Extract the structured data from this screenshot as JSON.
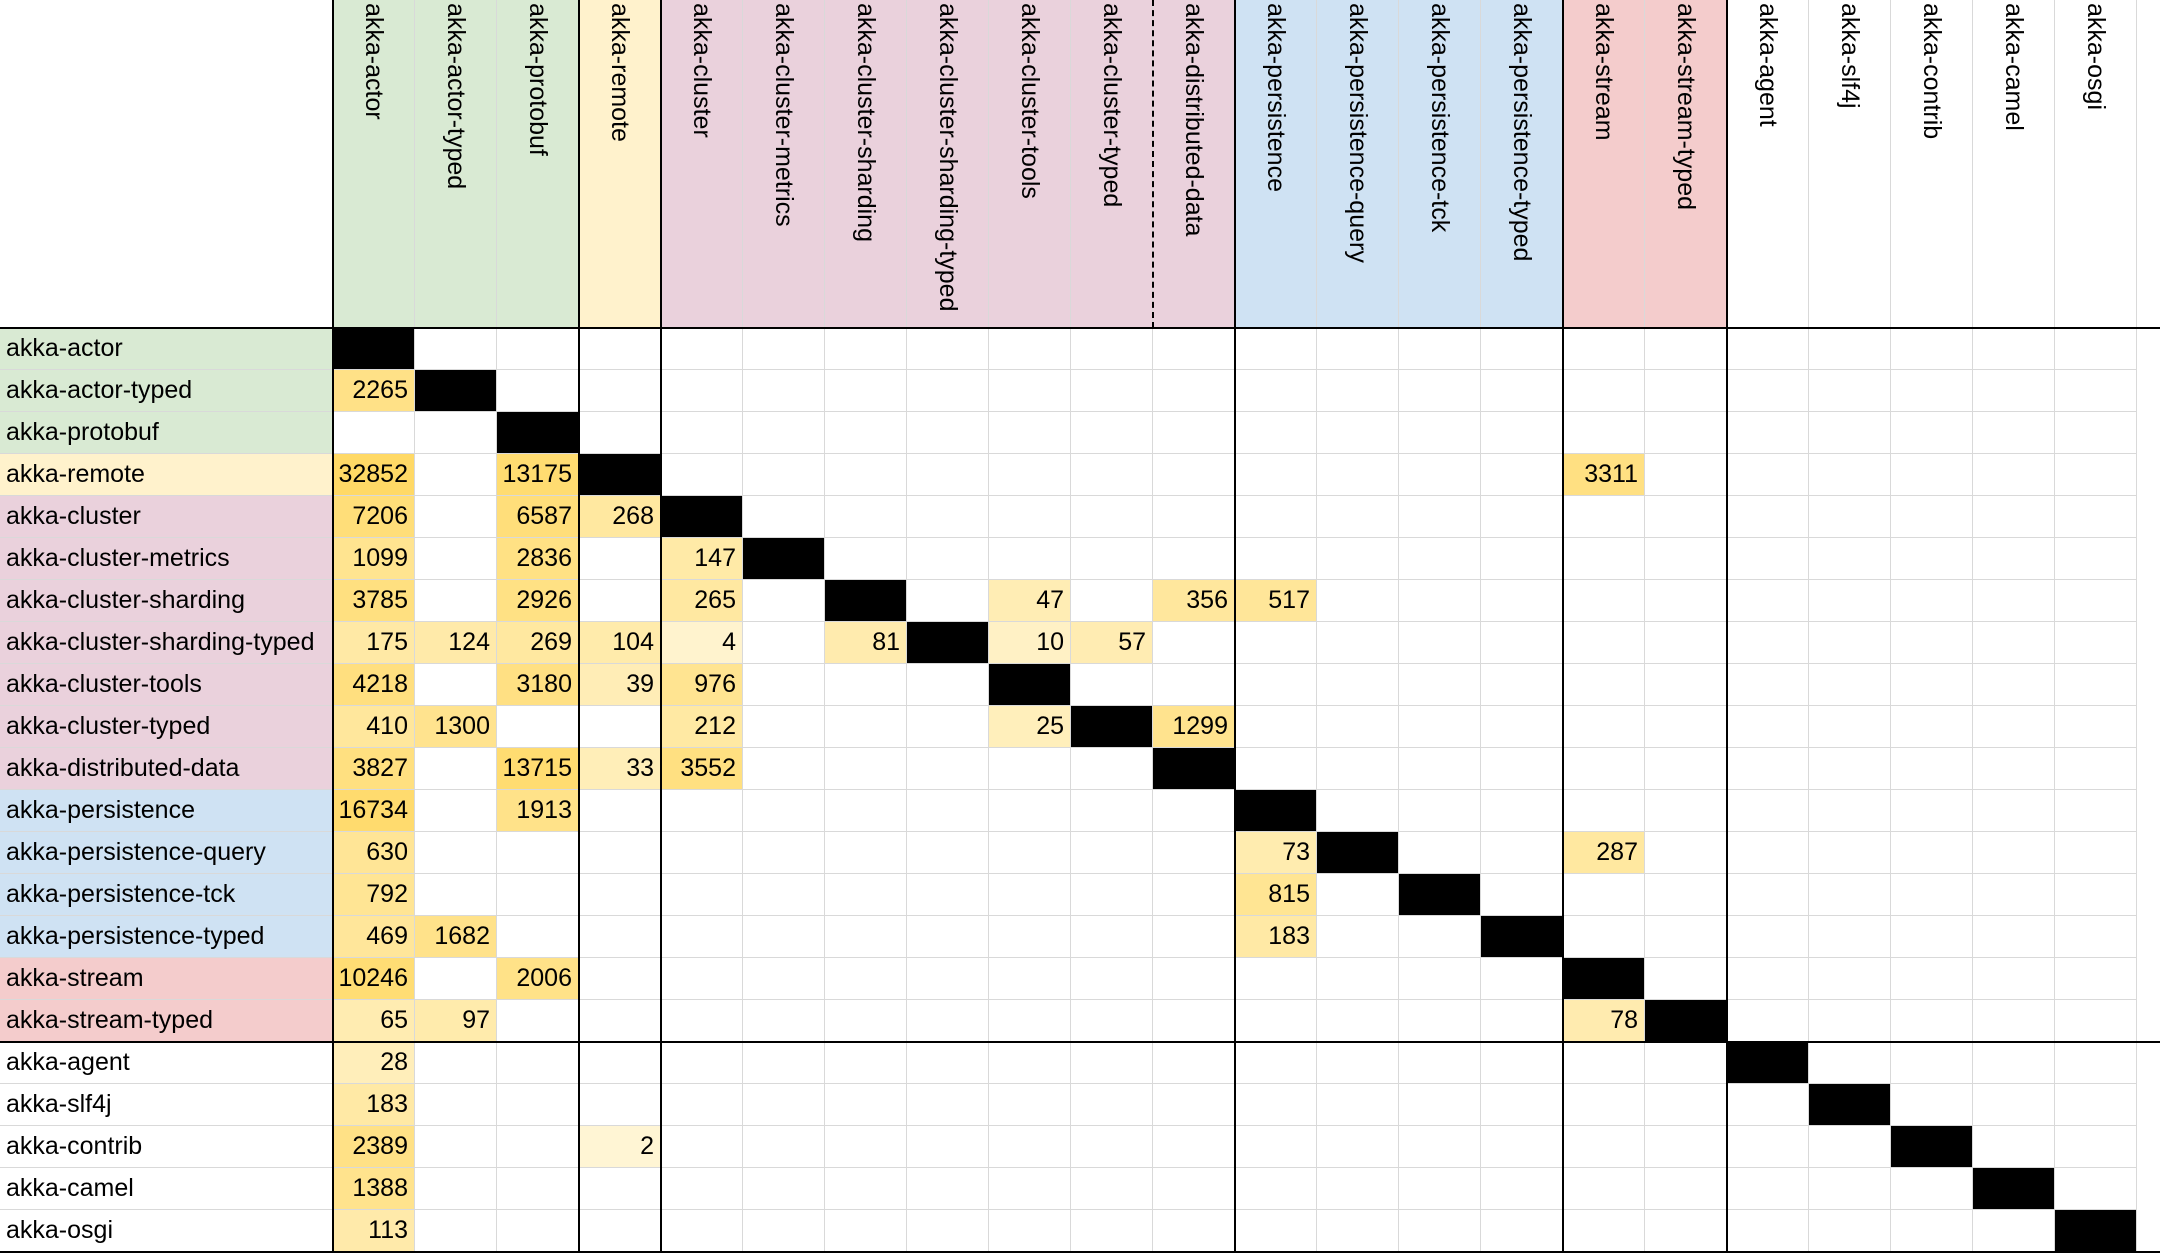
{
  "chart_data": {
    "type": "heatmap",
    "columns": [
      "akka-actor",
      "akka-actor-typed",
      "akka-protobuf",
      "akka-remote",
      "akka-cluster",
      "akka-cluster-metrics",
      "akka-cluster-sharding",
      "akka-cluster-sharding-typed",
      "akka-cluster-tools",
      "akka-cluster-typed",
      "akka-distributed-data",
      "akka-persistence",
      "akka-persistence-query",
      "akka-persistence-tck",
      "akka-persistence-typed",
      "akka-stream",
      "akka-stream-typed",
      "akka-agent",
      "akka-slf4j",
      "akka-contrib",
      "akka-camel",
      "akka-osgi"
    ],
    "rows": [
      "akka-actor",
      "akka-actor-typed",
      "akka-protobuf",
      "akka-remote",
      "akka-cluster",
      "akka-cluster-metrics",
      "akka-cluster-sharding",
      "akka-cluster-sharding-typed",
      "akka-cluster-tools",
      "akka-cluster-typed",
      "akka-distributed-data",
      "akka-persistence",
      "akka-persistence-query",
      "akka-persistence-tck",
      "akka-persistence-typed",
      "akka-stream",
      "akka-stream-typed",
      "akka-agent",
      "akka-slf4j",
      "akka-contrib",
      "akka-camel",
      "akka-osgi"
    ],
    "values": [
      [
        null,
        null,
        null,
        null,
        null,
        null,
        null,
        null,
        null,
        null,
        null,
        null,
        null,
        null,
        null,
        null,
        null,
        null,
        null,
        null,
        null,
        null
      ],
      [
        2265,
        null,
        null,
        null,
        null,
        null,
        null,
        null,
        null,
        null,
        null,
        null,
        null,
        null,
        null,
        null,
        null,
        null,
        null,
        null,
        null,
        null
      ],
      [
        null,
        null,
        null,
        null,
        null,
        null,
        null,
        null,
        null,
        null,
        null,
        null,
        null,
        null,
        null,
        null,
        null,
        null,
        null,
        null,
        null,
        null
      ],
      [
        32852,
        null,
        13175,
        null,
        null,
        null,
        null,
        null,
        null,
        null,
        null,
        null,
        null,
        null,
        null,
        3311,
        null,
        null,
        null,
        null,
        null,
        null
      ],
      [
        7206,
        null,
        6587,
        268,
        null,
        null,
        null,
        null,
        null,
        null,
        null,
        null,
        null,
        null,
        null,
        null,
        null,
        null,
        null,
        null,
        null,
        null
      ],
      [
        1099,
        null,
        2836,
        null,
        147,
        null,
        null,
        null,
        null,
        null,
        null,
        null,
        null,
        null,
        null,
        null,
        null,
        null,
        null,
        null,
        null,
        null
      ],
      [
        3785,
        null,
        2926,
        null,
        265,
        null,
        null,
        null,
        47,
        null,
        356,
        517,
        null,
        null,
        null,
        null,
        null,
        null,
        null,
        null,
        null,
        null
      ],
      [
        175,
        124,
        269,
        104,
        4,
        null,
        81,
        null,
        10,
        57,
        null,
        null,
        null,
        null,
        null,
        null,
        null,
        null,
        null,
        null,
        null,
        null
      ],
      [
        4218,
        null,
        3180,
        39,
        976,
        null,
        null,
        null,
        null,
        null,
        null,
        null,
        null,
        null,
        null,
        null,
        null,
        null,
        null,
        null,
        null,
        null
      ],
      [
        410,
        1300,
        null,
        null,
        212,
        null,
        null,
        null,
        25,
        null,
        1299,
        null,
        null,
        null,
        null,
        null,
        null,
        null,
        null,
        null,
        null,
        null
      ],
      [
        3827,
        null,
        13715,
        33,
        3552,
        null,
        null,
        null,
        null,
        null,
        null,
        null,
        null,
        null,
        null,
        null,
        null,
        null,
        null,
        null,
        null,
        null
      ],
      [
        16734,
        null,
        1913,
        null,
        null,
        null,
        null,
        null,
        null,
        null,
        null,
        null,
        null,
        null,
        null,
        null,
        null,
        null,
        null,
        null,
        null,
        null
      ],
      [
        630,
        null,
        null,
        null,
        null,
        null,
        null,
        null,
        null,
        null,
        null,
        73,
        null,
        null,
        null,
        287,
        null,
        null,
        null,
        null,
        null,
        null
      ],
      [
        792,
        null,
        null,
        null,
        null,
        null,
        null,
        null,
        null,
        null,
        null,
        815,
        null,
        null,
        null,
        null,
        null,
        null,
        null,
        null,
        null,
        null
      ],
      [
        469,
        1682,
        null,
        null,
        null,
        null,
        null,
        null,
        null,
        null,
        null,
        183,
        null,
        null,
        null,
        null,
        null,
        null,
        null,
        null,
        null,
        null
      ],
      [
        10246,
        null,
        2006,
        null,
        null,
        null,
        null,
        null,
        null,
        null,
        null,
        null,
        null,
        null,
        null,
        null,
        null,
        null,
        null,
        null,
        null,
        null
      ],
      [
        65,
        97,
        null,
        null,
        null,
        null,
        null,
        null,
        null,
        null,
        null,
        null,
        null,
        null,
        null,
        78,
        null,
        null,
        null,
        null,
        null,
        null
      ],
      [
        28,
        null,
        null,
        null,
        null,
        null,
        null,
        null,
        null,
        null,
        null,
        null,
        null,
        null,
        null,
        null,
        null,
        null,
        null,
        null,
        null,
        null
      ],
      [
        183,
        null,
        null,
        null,
        null,
        null,
        null,
        null,
        null,
        null,
        null,
        null,
        null,
        null,
        null,
        null,
        null,
        null,
        null,
        null,
        null,
        null
      ],
      [
        2389,
        null,
        null,
        2,
        null,
        null,
        null,
        null,
        null,
        null,
        null,
        null,
        null,
        null,
        null,
        null,
        null,
        null,
        null,
        null,
        null,
        null
      ],
      [
        1388,
        null,
        null,
        null,
        null,
        null,
        null,
        null,
        null,
        null,
        null,
        null,
        null,
        null,
        null,
        null,
        null,
        null,
        null,
        null,
        null,
        null
      ],
      [
        113,
        null,
        null,
        null,
        null,
        null,
        null,
        null,
        null,
        null,
        null,
        null,
        null,
        null,
        null,
        null,
        null,
        null,
        null,
        null,
        null,
        null
      ]
    ],
    "diagonal": "black",
    "groups": [
      {
        "members": [
          "akka-actor",
          "akka-actor-typed",
          "akka-protobuf"
        ],
        "color": "#d9ead3"
      },
      {
        "members": [
          "akka-remote"
        ],
        "color": "#fff2cc"
      },
      {
        "members": [
          "akka-cluster",
          "akka-cluster-metrics",
          "akka-cluster-sharding",
          "akka-cluster-sharding-typed",
          "akka-cluster-tools",
          "akka-cluster-typed",
          "akka-distributed-data"
        ],
        "color": "#ead1dc"
      },
      {
        "members": [
          "akka-persistence",
          "akka-persistence-query",
          "akka-persistence-tck",
          "akka-persistence-typed"
        ],
        "color": "#cfe2f3"
      },
      {
        "members": [
          "akka-stream",
          "akka-stream-typed"
        ],
        "color": "#f4cccc"
      },
      {
        "members": [
          "akka-agent",
          "akka-slf4j",
          "akka-contrib",
          "akka-camel",
          "akka-osgi"
        ],
        "color": "#ffffff"
      }
    ],
    "scale_colors": {
      "low": "#fff8e1",
      "mid": "#ffe699",
      "high": "#ffd966"
    }
  }
}
